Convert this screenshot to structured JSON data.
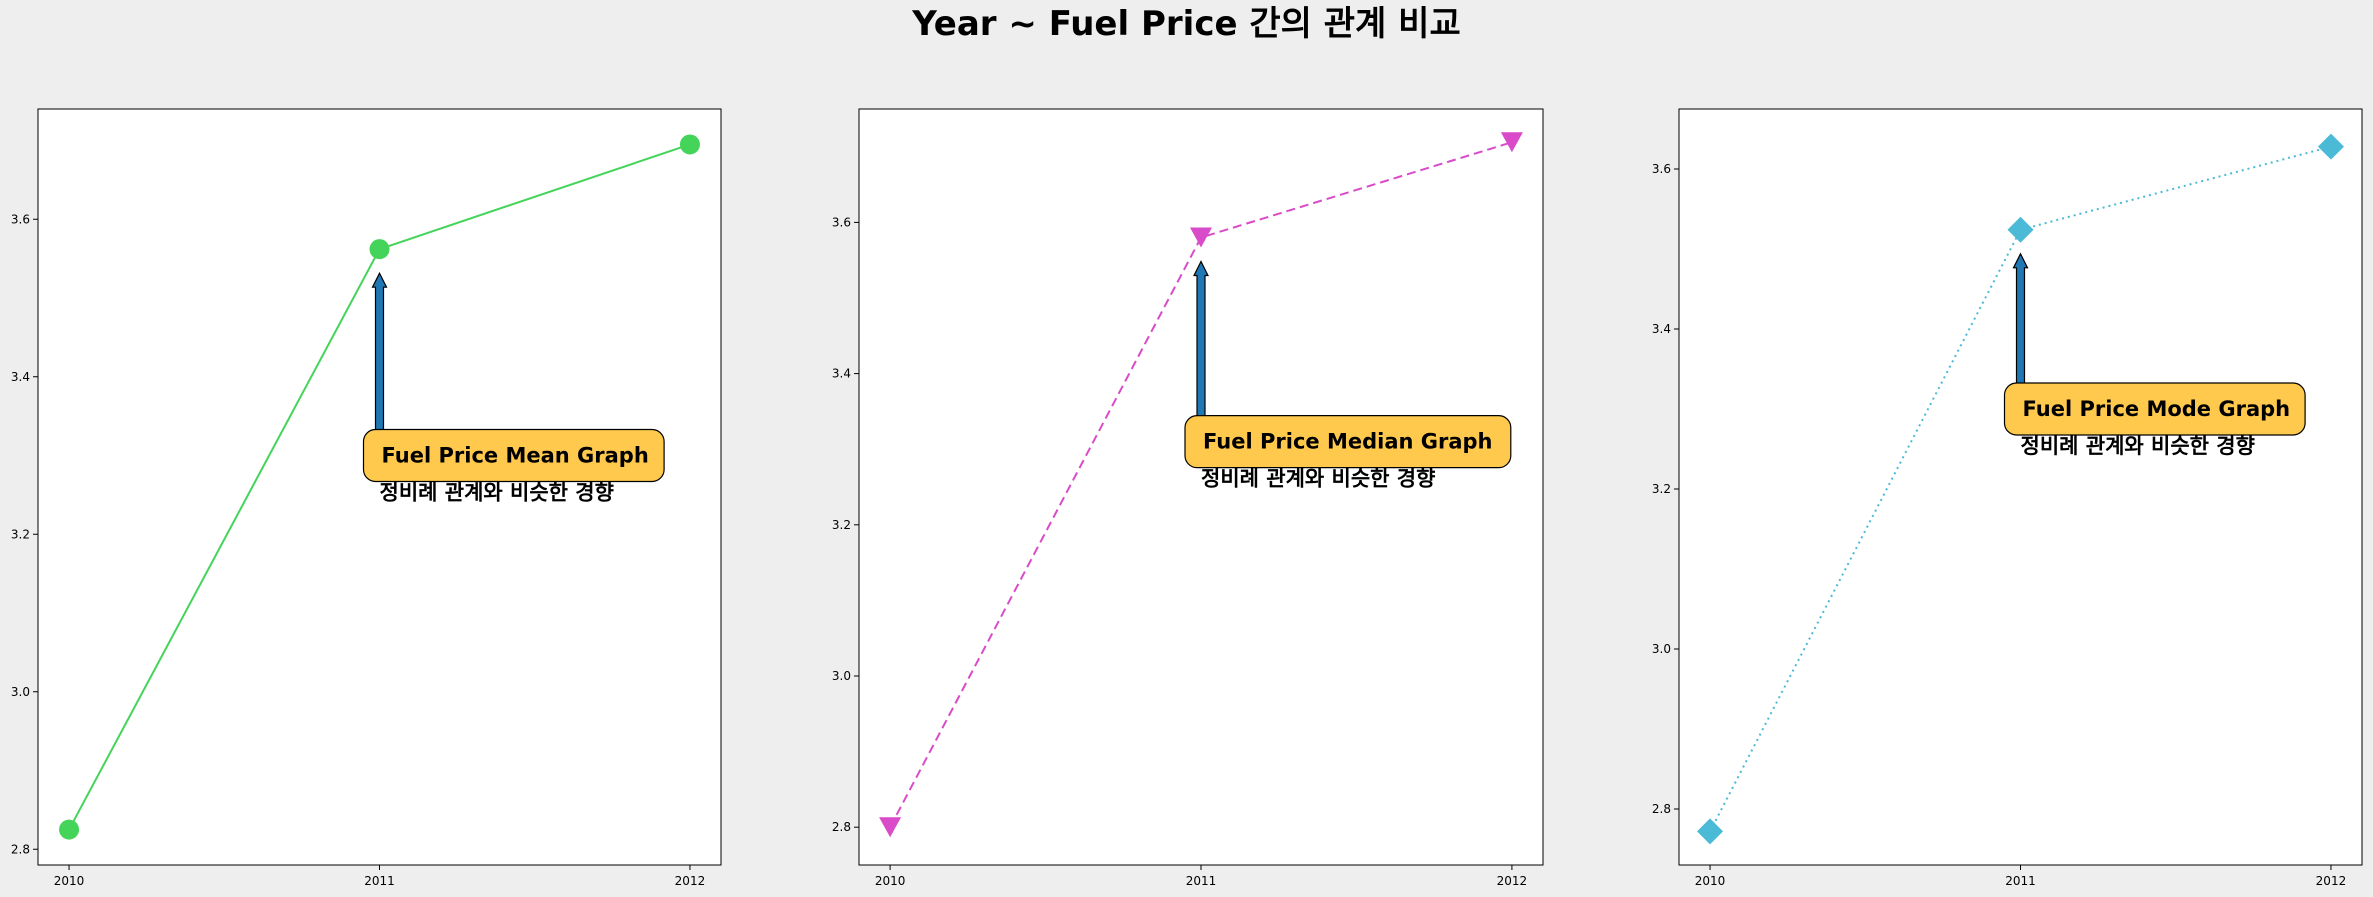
{
  "suptitle": "Year ~ Fuel Price 간의 관계 비교",
  "chart_data": [
    {
      "type": "line",
      "x": [
        2010,
        2011,
        2012
      ],
      "xticks": [
        "2010",
        "2011",
        "2012"
      ],
      "series": [
        {
          "values": [
            2.825,
            3.562,
            3.695
          ]
        }
      ],
      "ylim": [
        2.78,
        3.74
      ],
      "yticks": [
        2.8,
        3.0,
        3.2,
        3.4,
        3.6
      ],
      "style": {
        "color": "#44d45a",
        "linestyle": "solid",
        "marker": "circle"
      },
      "annotation": {
        "title": "Fuel Price Mean Graph",
        "subtitle": "정비례 관계와 비슷한 경향",
        "x": 2011,
        "y": 3.562,
        "text_y": 3.3
      },
      "title": "",
      "xlabel": "",
      "ylabel": "",
      "grid": false
    },
    {
      "type": "line",
      "x": [
        2010,
        2011,
        2012
      ],
      "xticks": [
        "2010",
        "2011",
        "2012"
      ],
      "series": [
        {
          "values": [
            2.8,
            3.58,
            3.706
          ]
        }
      ],
      "ylim": [
        2.75,
        3.75
      ],
      "yticks": [
        2.8,
        3.0,
        3.2,
        3.4,
        3.6
      ],
      "style": {
        "color": "#d94bc8",
        "linestyle": "dashed",
        "marker": "triangle-down"
      },
      "annotation": {
        "title": "Fuel Price Median Graph",
        "subtitle": "정비례 관계와 비슷한 경향",
        "x": 2011,
        "y": 3.58,
        "text_y": 3.31
      },
      "title": "",
      "xlabel": "",
      "ylabel": "",
      "grid": false
    },
    {
      "type": "line",
      "x": [
        2010,
        2011,
        2012
      ],
      "xticks": [
        "2010",
        "2011",
        "2012"
      ],
      "series": [
        {
          "values": [
            2.772,
            3.524,
            3.628
          ]
        }
      ],
      "ylim": [
        2.73,
        3.675
      ],
      "yticks": [
        2.8,
        3.0,
        3.2,
        3.4,
        3.6
      ],
      "style": {
        "color": "#4bbad6",
        "linestyle": "dotted",
        "marker": "diamond"
      },
      "annotation": {
        "title": "Fuel Price Mode Graph",
        "subtitle": "정비례 관계와 비슷한 경향",
        "x": 2011,
        "y": 3.524,
        "text_y": 3.3
      },
      "title": "",
      "xlabel": "",
      "ylabel": "",
      "grid": false
    }
  ]
}
